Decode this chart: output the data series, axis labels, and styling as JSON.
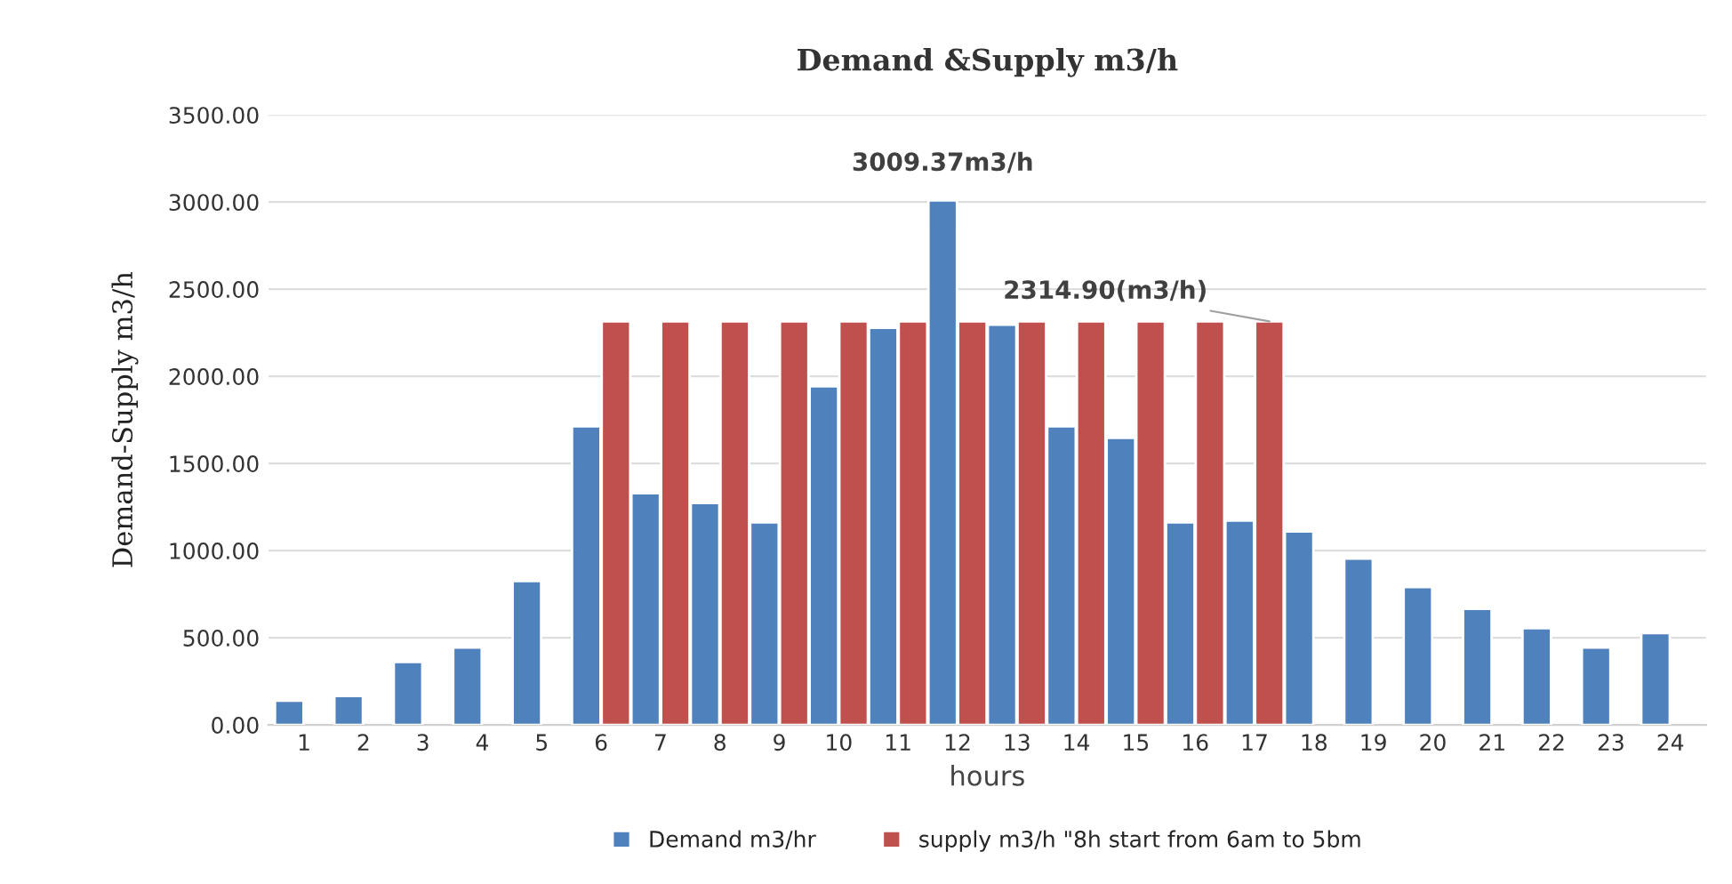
{
  "chart_data": {
    "type": "bar",
    "title": "Demand &Supply m3/h",
    "xlabel": "hours",
    "ylabel": "Demand-Supply m3/h",
    "categories": [
      "1",
      "2",
      "3",
      "4",
      "5",
      "6",
      "7",
      "8",
      "9",
      "10",
      "11",
      "12",
      "13",
      "14",
      "15",
      "16",
      "17",
      "18",
      "19",
      "20",
      "21",
      "22",
      "23",
      "24"
    ],
    "series": [
      {
        "name": "Demand m3/hr",
        "color": "#4f81bd",
        "values": [
          139,
          166,
          361,
          444,
          825,
          1713,
          1329,
          1273,
          1162,
          1943,
          2279,
          3009.37,
          2296,
          1713,
          1647,
          1162,
          1172,
          1110,
          954,
          791,
          666,
          555,
          444,
          527
        ]
      },
      {
        "name": "supply m3/h \"8h start from 6am to 5bm",
        "color": "#c0504d",
        "values": [
          null,
          null,
          null,
          null,
          null,
          2314.9,
          2314.9,
          2314.9,
          2314.9,
          2314.9,
          2314.9,
          2314.9,
          2314.9,
          2314.9,
          2314.9,
          2314.9,
          2314.9,
          null,
          null,
          null,
          null,
          null,
          null,
          null
        ]
      }
    ],
    "ylim": [
      0,
      3500
    ],
    "yticks": [
      {
        "value": 0,
        "label": "0.00"
      },
      {
        "value": 500,
        "label": "500.00"
      },
      {
        "value": 1000,
        "label": "1000.00"
      },
      {
        "value": 1500,
        "label": "1500.00"
      },
      {
        "value": 2000,
        "label": "2000.00"
      },
      {
        "value": 2500,
        "label": "2500.00"
      },
      {
        "value": 3000,
        "label": "3000.00"
      },
      {
        "value": 3500,
        "label": "3500.00"
      }
    ],
    "annotations": [
      {
        "text": "3009.37m3/h",
        "x": "12",
        "y": 3009.37
      },
      {
        "text": "2314.90(m3/h)",
        "x": "17",
        "y": 2314.9
      }
    ],
    "grid": "y",
    "legend": "bottom"
  }
}
